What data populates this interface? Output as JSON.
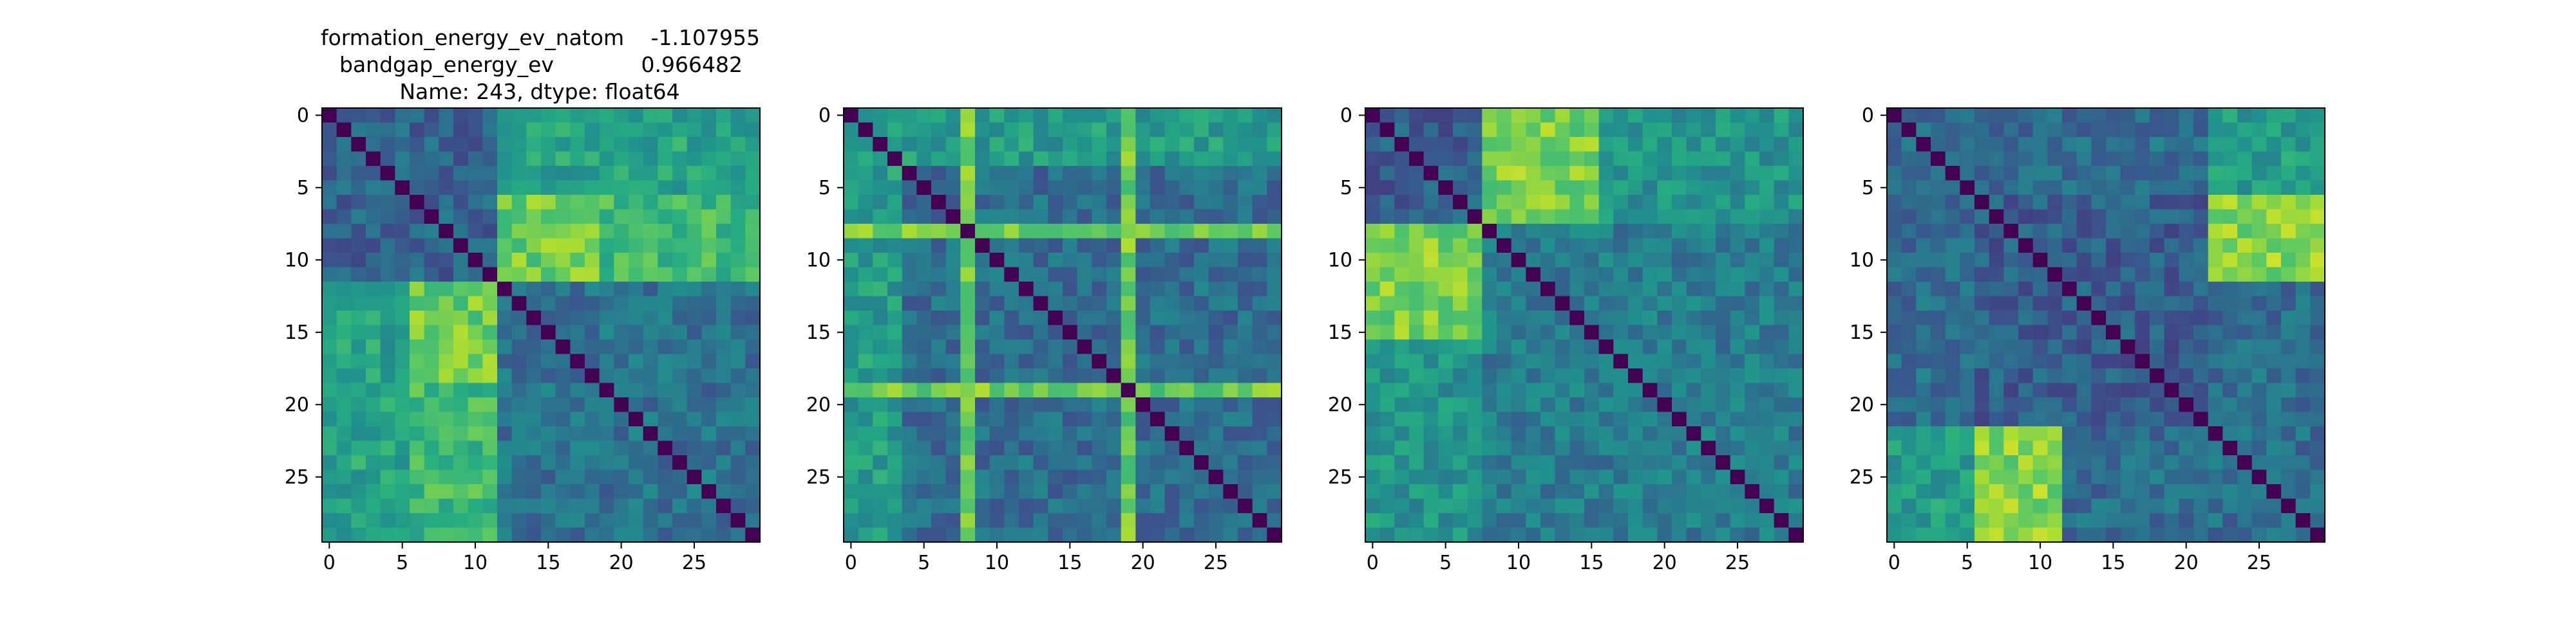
{
  "figure": {
    "title_lines": [
      {
        "left": "formation_energy_ev_natom",
        "right": "-1.107955"
      },
      {
        "left": "bandgap_energy_ev",
        "right": "0.966482"
      },
      {
        "center": "Name: 243, dtype: float64"
      }
    ]
  },
  "chart_data": [
    {
      "type": "heatmap",
      "rows": 30,
      "cols": 30,
      "xticks": [
        0,
        5,
        10,
        15,
        20,
        25
      ],
      "yticks": [
        0,
        5,
        10,
        15,
        20,
        25
      ],
      "colormap": "viridis",
      "value_range": [
        0,
        1
      ],
      "diagonal": 0,
      "blocks": [
        {
          "rows": [
            0,
            11
          ],
          "cols": [
            0,
            11
          ],
          "level": 0.32
        },
        {
          "rows": [
            0,
            5
          ],
          "cols": [
            12,
            29
          ],
          "level": 0.58
        },
        {
          "rows": [
            6,
            11
          ],
          "cols": [
            12,
            18
          ],
          "level": 0.8
        },
        {
          "rows": [
            6,
            11
          ],
          "cols": [
            19,
            29
          ],
          "level": 0.6
        },
        {
          "rows": [
            12,
            29
          ],
          "cols": [
            0,
            5
          ],
          "level": 0.58
        },
        {
          "rows": [
            12,
            29
          ],
          "cols": [
            6,
            11
          ],
          "level": 0.75
        },
        {
          "rows": [
            12,
            29
          ],
          "cols": [
            12,
            29
          ],
          "level": 0.38
        }
      ],
      "seed": 11
    },
    {
      "type": "heatmap",
      "rows": 30,
      "cols": 30,
      "xticks": [
        0,
        5,
        10,
        15,
        20,
        25
      ],
      "yticks": [
        0,
        5,
        10,
        15,
        20,
        25
      ],
      "colormap": "viridis",
      "value_range": [
        0,
        1
      ],
      "diagonal": 0,
      "blocks": [
        {
          "rows": [
            0,
            29
          ],
          "cols": [
            0,
            29
          ],
          "level": 0.36
        },
        {
          "rows": [
            0,
            3
          ],
          "cols": [
            0,
            29
          ],
          "level": 0.55
        },
        {
          "rows": [
            0,
            29
          ],
          "cols": [
            0,
            3
          ],
          "level": 0.55
        },
        {
          "rows": [
            8,
            8
          ],
          "cols": [
            0,
            29
          ],
          "level": 0.8
        },
        {
          "rows": [
            0,
            29
          ],
          "cols": [
            8,
            8
          ],
          "level": 0.8
        },
        {
          "rows": [
            19,
            19
          ],
          "cols": [
            0,
            29
          ],
          "level": 0.78
        },
        {
          "rows": [
            0,
            29
          ],
          "cols": [
            19,
            19
          ],
          "level": 0.78
        }
      ],
      "seed": 23
    },
    {
      "type": "heatmap",
      "rows": 30,
      "cols": 30,
      "xticks": [
        0,
        5,
        10,
        15,
        20,
        25
      ],
      "yticks": [
        0,
        5,
        10,
        15,
        20,
        25
      ],
      "colormap": "viridis",
      "value_range": [
        0,
        1
      ],
      "diagonal": 0,
      "blocks": [
        {
          "rows": [
            0,
            7
          ],
          "cols": [
            0,
            7
          ],
          "level": 0.3
        },
        {
          "rows": [
            0,
            7
          ],
          "cols": [
            8,
            15
          ],
          "level": 0.8
        },
        {
          "rows": [
            0,
            7
          ],
          "cols": [
            16,
            29
          ],
          "level": 0.52
        },
        {
          "rows": [
            8,
            15
          ],
          "cols": [
            0,
            7
          ],
          "level": 0.8
        },
        {
          "rows": [
            16,
            29
          ],
          "cols": [
            0,
            7
          ],
          "level": 0.52
        },
        {
          "rows": [
            8,
            29
          ],
          "cols": [
            8,
            29
          ],
          "level": 0.42
        }
      ],
      "seed": 37
    },
    {
      "type": "heatmap",
      "rows": 30,
      "cols": 30,
      "xticks": [
        0,
        5,
        10,
        15,
        20,
        25
      ],
      "yticks": [
        0,
        5,
        10,
        15,
        20,
        25
      ],
      "colormap": "viridis",
      "value_range": [
        0,
        1
      ],
      "diagonal": 0,
      "blocks": [
        {
          "rows": [
            0,
            29
          ],
          "cols": [
            0,
            29
          ],
          "level": 0.36
        },
        {
          "rows": [
            0,
            5
          ],
          "cols": [
            22,
            29
          ],
          "level": 0.55
        },
        {
          "rows": [
            6,
            11
          ],
          "cols": [
            22,
            29
          ],
          "level": 0.82
        },
        {
          "rows": [
            22,
            29
          ],
          "cols": [
            0,
            5
          ],
          "level": 0.55
        },
        {
          "rows": [
            22,
            29
          ],
          "cols": [
            6,
            11
          ],
          "level": 0.82
        },
        {
          "rows": [
            6,
            21
          ],
          "cols": [
            6,
            21
          ],
          "level": 0.3
        }
      ],
      "seed": 53
    }
  ]
}
